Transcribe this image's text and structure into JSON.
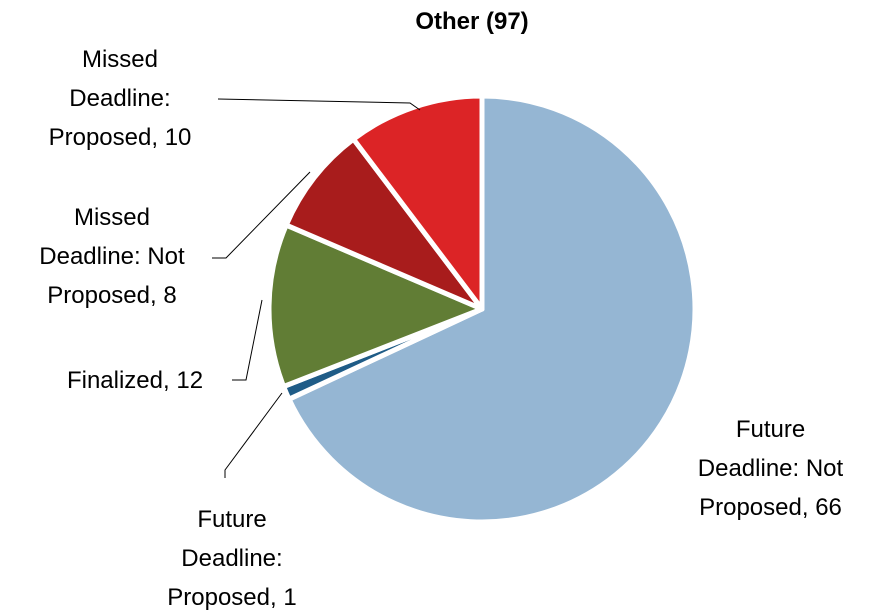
{
  "chart_data": {
    "type": "pie",
    "title": "Other (97)",
    "categories": [
      "Future Deadline: Not Proposed",
      "Future Deadline: Proposed",
      "Finalized",
      "Missed Deadline: Not Proposed",
      "Missed Deadline: Proposed"
    ],
    "values": [
      66,
      1,
      12,
      8,
      10
    ],
    "colors": [
      "#95b6d3",
      "#1f5c87",
      "#617d35",
      "#a81c1c",
      "#dc2426"
    ]
  }
}
